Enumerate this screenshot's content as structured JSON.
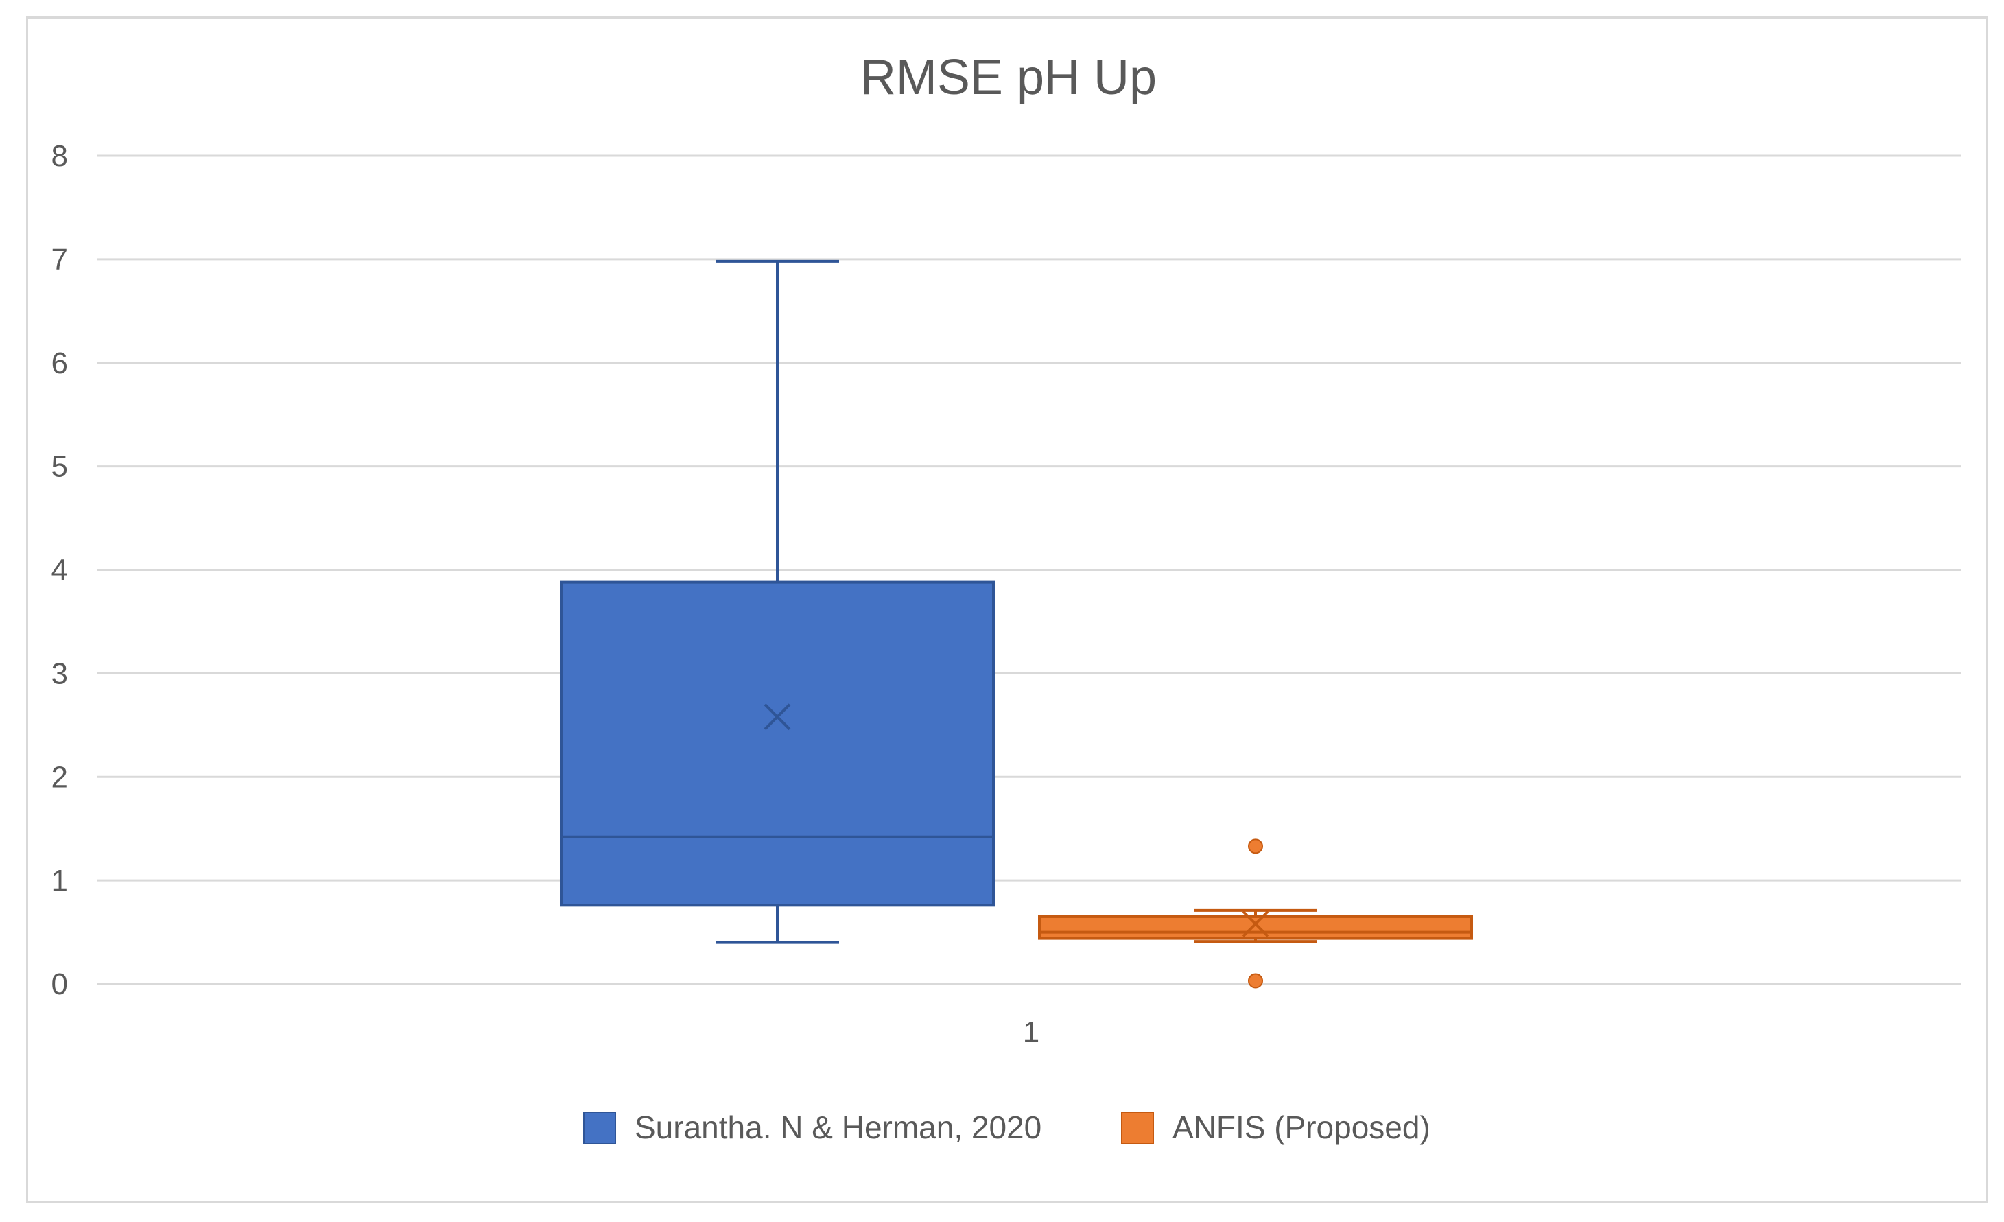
{
  "chart_data": {
    "type": "box",
    "title": "RMSE pH Up",
    "xlabel": "",
    "ylabel": "",
    "ylim": [
      0,
      8
    ],
    "yticks": [
      0,
      1,
      2,
      3,
      4,
      5,
      6,
      7,
      8
    ],
    "categories": [
      "1"
    ],
    "grid": true,
    "legend_position": "bottom",
    "series": [
      {
        "name": "Surantha. N & Herman, 2020",
        "color": "#4472C4",
        "edge_color": "#2F5597",
        "min": 0.4,
        "q1": 0.76,
        "median": 1.42,
        "q3": 3.88,
        "max": 6.98,
        "mean": 2.58,
        "outliers": []
      },
      {
        "name": "ANFIS (Proposed)",
        "color": "#ED7D31",
        "edge_color": "#C55A11",
        "min": 0.41,
        "q1": 0.44,
        "median": 0.5,
        "q3": 0.65,
        "max": 0.71,
        "mean": 0.58,
        "outliers": [
          1.33,
          0.03
        ]
      }
    ]
  }
}
